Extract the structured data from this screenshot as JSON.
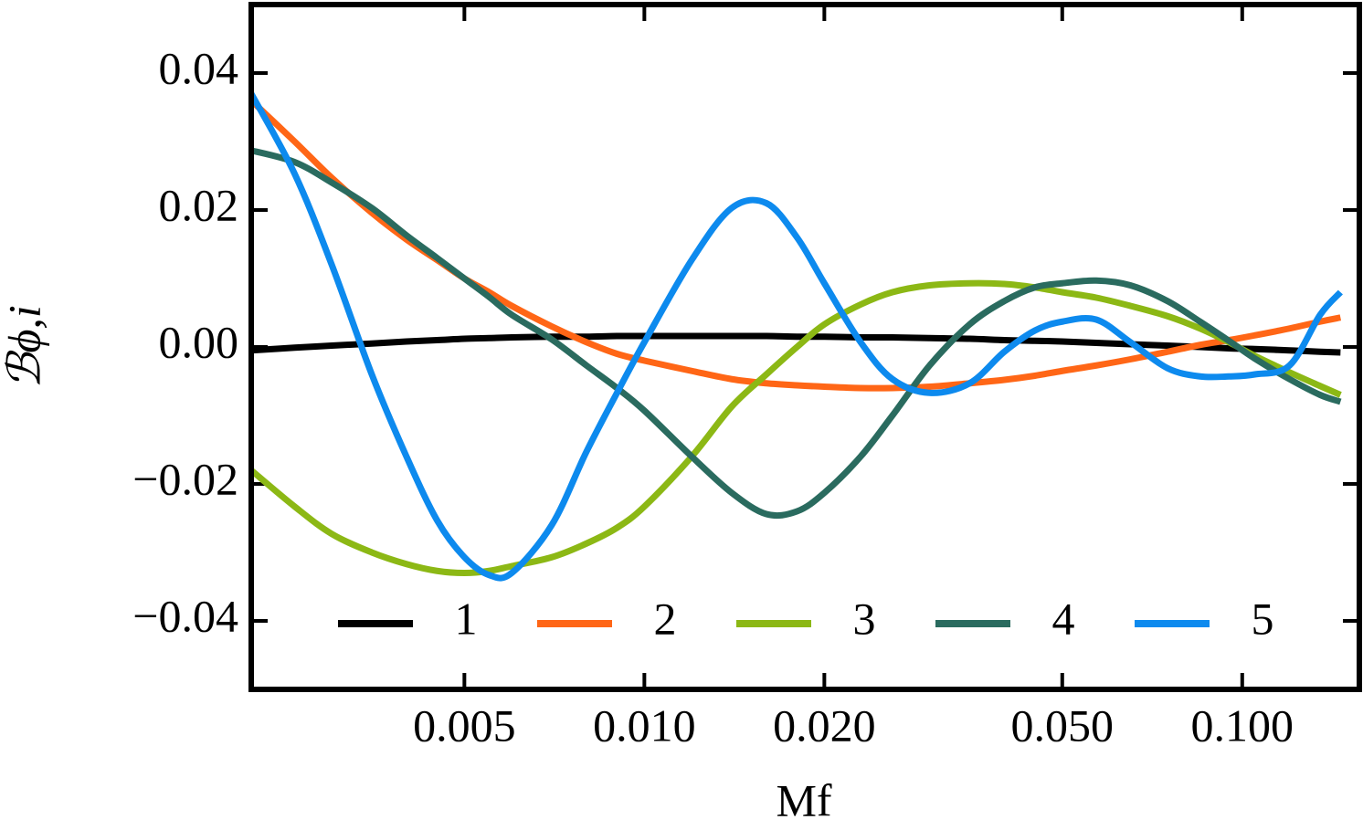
{
  "chart_data": {
    "type": "line",
    "x_label": "Mf",
    "y_label": "ℬϕ,i",
    "xscale": "log",
    "xlim": [
      0.0022,
      0.157
    ],
    "ylim": [
      -0.05,
      0.05
    ],
    "xticks": [
      {
        "value": 0.005,
        "label": "0.005"
      },
      {
        "value": 0.01,
        "label": "0.010"
      },
      {
        "value": 0.02,
        "label": "0.020"
      },
      {
        "value": 0.05,
        "label": "0.050"
      },
      {
        "value": 0.1,
        "label": "0.100"
      }
    ],
    "yticks": [
      {
        "value": -0.04,
        "label": "−0.04"
      },
      {
        "value": -0.02,
        "label": "−0.02"
      },
      {
        "value": 0,
        "label": "0.00"
      },
      0.02,
      0.04
    ],
    "legend": "bottom",
    "x": [
      0.0022,
      0.0026,
      0.003,
      0.0035,
      0.004,
      0.0045,
      0.005,
      0.0055,
      0.006,
      0.007,
      0.008,
      0.009,
      0.01,
      0.012,
      0.014,
      0.016,
      0.018,
      0.02,
      0.023,
      0.026,
      0.03,
      0.035,
      0.04,
      0.045,
      0.05,
      0.057,
      0.065,
      0.075,
      0.085,
      0.095,
      0.105,
      0.12,
      0.135,
      0.146
    ],
    "series": [
      {
        "name": "1",
        "color": "#000000",
        "values": [
          -0.0005,
          -0.0001,
          0.0002,
          0.0005,
          0.0008,
          0.001,
          0.0012,
          0.0013,
          0.0014,
          0.0015,
          0.0015,
          0.0016,
          0.0016,
          0.0016,
          0.0016,
          0.0016,
          0.0015,
          0.0015,
          0.0014,
          0.0014,
          0.0013,
          0.0012,
          0.001,
          0.0009,
          0.0008,
          0.0006,
          0.0004,
          0.0002,
          0,
          -0.0002,
          -0.0003,
          -0.0005,
          -0.0007,
          -0.0008
        ]
      },
      {
        "name": "2",
        "color": "#ff6616",
        "values": [
          0.036,
          0.03,
          0.0247,
          0.0196,
          0.0157,
          0.0127,
          0.01,
          0.008,
          0.006,
          0.003,
          0.0007,
          -0.001,
          -0.002,
          -0.0035,
          -0.0047,
          -0.0053,
          -0.0056,
          -0.0058,
          -0.006,
          -0.006,
          -0.0058,
          -0.0053,
          -0.0048,
          -0.0042,
          -0.0035,
          -0.0027,
          -0.0018,
          -0.0007,
          0.0003,
          0.001,
          0.0017,
          0.0027,
          0.0037,
          0.0043
        ]
      },
      {
        "name": "3",
        "color": "#8cb815",
        "values": [
          -0.018,
          -0.0233,
          -0.0273,
          -0.03,
          -0.0317,
          -0.0327,
          -0.033,
          -0.0327,
          -0.032,
          -0.0307,
          -0.0287,
          -0.0264,
          -0.0233,
          -0.016,
          -0.0087,
          -0.004,
          0,
          0.0033,
          0.0062,
          0.008,
          0.009,
          0.0093,
          0.0092,
          0.0087,
          0.008,
          0.0072,
          0.006,
          0.0045,
          0.0027,
          0.0007,
          -0.0013,
          -0.0037,
          -0.0057,
          -0.007
        ]
      },
      {
        "name": "4",
        "color": "#2a6b5f",
        "values": [
          0.0287,
          0.027,
          0.024,
          0.0203,
          0.0163,
          0.013,
          0.01,
          0.0073,
          0.0047,
          0.0011,
          -0.0027,
          -0.006,
          -0.0093,
          -0.016,
          -0.0213,
          -0.0244,
          -0.024,
          -0.0213,
          -0.016,
          -0.01,
          -0.0027,
          0.0033,
          0.0067,
          0.0087,
          0.0093,
          0.0097,
          0.009,
          0.0067,
          0.0037,
          0.0009,
          -0.0017,
          -0.0047,
          -0.007,
          -0.008
        ]
      },
      {
        "name": "5",
        "color": "#0d8aee",
        "values": [
          0.037,
          0.0253,
          0.012,
          -0.004,
          -0.016,
          -0.0253,
          -0.0307,
          -0.0333,
          -0.033,
          -0.026,
          -0.0153,
          -0.0067,
          0.0007,
          0.0127,
          0.0203,
          0.021,
          0.016,
          0.0093,
          0.0007,
          -0.0047,
          -0.0067,
          -0.0053,
          -0.0007,
          0.0024,
          0.0037,
          0.004,
          0.0007,
          -0.0031,
          -0.0043,
          -0.0043,
          -0.004,
          -0.0027,
          0.0047,
          0.008
        ]
      }
    ]
  }
}
